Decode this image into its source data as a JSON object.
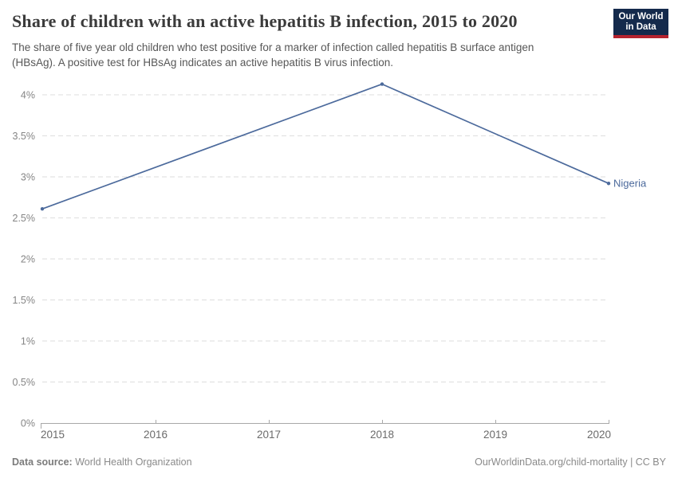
{
  "header": {
    "title": "Share of children with an active hepatitis B infection, 2015 to 2020",
    "subtitle_line1": "The share of five year old children who test positive for a marker of infection called hepatitis B surface antigen",
    "subtitle_line2": "(HBsAg). A positive test for HBsAg indicates an active hepatitis B virus infection."
  },
  "logo": {
    "line1": "Our World",
    "line2": "in Data"
  },
  "chart_data": {
    "type": "line",
    "title": "Share of children with an active hepatitis B infection, 2015 to 2020",
    "x": [
      2015,
      2018,
      2020
    ],
    "series": [
      {
        "name": "Nigeria",
        "color": "#4C6A9C",
        "values": [
          2.61,
          4.13,
          2.92
        ]
      }
    ],
    "end_label": "Nigeria",
    "xlabel": "",
    "ylabel": "",
    "xlim": [
      2015,
      2020
    ],
    "ylim": [
      0,
      4.15
    ],
    "x_ticks": [
      {
        "value": 2015,
        "label": "2015"
      },
      {
        "value": 2016,
        "label": "2016"
      },
      {
        "value": 2017,
        "label": "2017"
      },
      {
        "value": 2018,
        "label": "2018"
      },
      {
        "value": 2019,
        "label": "2019"
      },
      {
        "value": 2020,
        "label": "2020"
      }
    ],
    "y_ticks": [
      {
        "value": 0,
        "label": "0%"
      },
      {
        "value": 0.5,
        "label": "0.5%"
      },
      {
        "value": 1,
        "label": "1%"
      },
      {
        "value": 1.5,
        "label": "1.5%"
      },
      {
        "value": 2,
        "label": "2%"
      },
      {
        "value": 2.5,
        "label": "2.5%"
      },
      {
        "value": 3,
        "label": "3%"
      },
      {
        "value": 3.5,
        "label": "3.5%"
      },
      {
        "value": 4,
        "label": "4%"
      }
    ],
    "grid": "horizontal-dashed",
    "legend": "end-of-line-label"
  },
  "footer": {
    "datasource_label": "Data source:",
    "datasource_value": "World Health Organization",
    "license_text": "OurWorldinData.org/child-mortality | CC BY"
  },
  "colors": {
    "line": "#4C6A9C",
    "grid": "#dedede",
    "axis": "#a8a8a8",
    "logo_bg": "#142a4c",
    "logo_accent": "#b5232f",
    "title": "#3b3b3b",
    "subtitle": "#575757",
    "tick_label": "#858585",
    "footer_text": "#8a8a8a"
  }
}
